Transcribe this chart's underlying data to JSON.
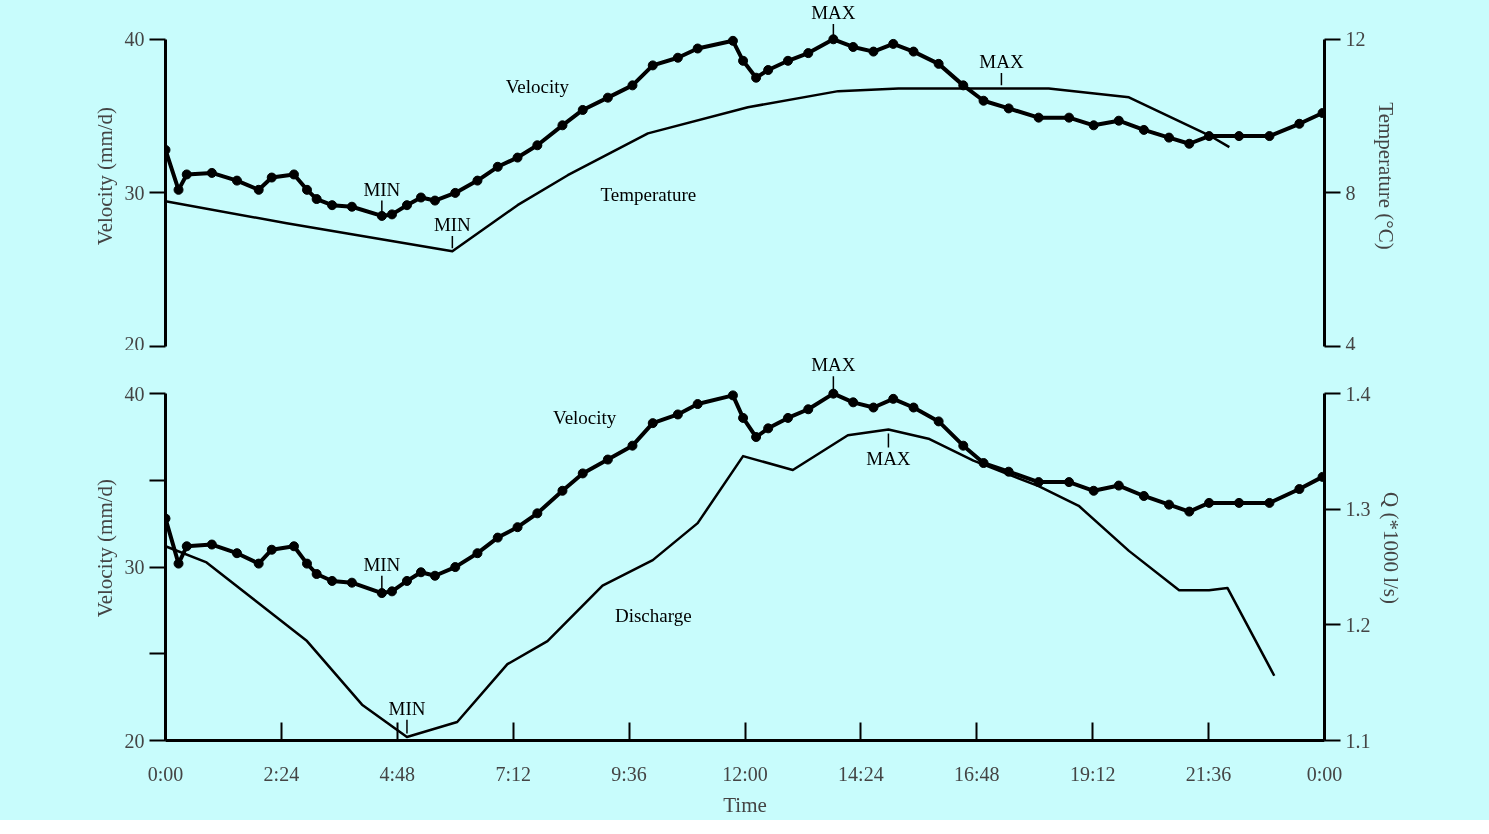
{
  "chart_data": [
    {
      "type": "line",
      "ylabel": "Velocity (mm/d)",
      "y2label": "Temperature (°C)",
      "xlim": [
        0,
        24
      ],
      "ylim": [
        20,
        40
      ],
      "yticks": [
        20,
        30,
        40
      ],
      "y2lim": [
        4,
        12
      ],
      "y2ticks": [
        4,
        8,
        12
      ],
      "tick_labels": "y",
      "grid": false,
      "legend": false,
      "x": [
        0,
        0.27,
        0.44,
        0.96,
        1.48,
        1.93,
        2.2,
        2.66,
        2.93,
        3.13,
        3.45,
        3.86,
        4.48,
        4.69,
        5.0,
        5.29,
        5.58,
        6.0,
        6.46,
        6.88,
        7.29,
        7.7,
        8.22,
        8.64,
        9.16,
        9.67,
        10.09,
        10.61,
        11.02,
        11.75,
        11.96,
        12.23,
        12.48,
        12.89,
        13.31,
        13.83,
        14.24,
        14.66,
        15.07,
        15.49,
        16.01,
        16.52,
        16.94,
        17.46,
        18.08,
        18.71,
        19.22,
        19.74,
        20.26,
        20.78,
        21.2,
        21.61,
        22.23,
        22.86,
        23.48,
        23.96
      ],
      "series": [
        {
          "name": "Velocity",
          "color": "#000000",
          "marker": "circle",
          "values": [
            32.8,
            30.2,
            31.2,
            31.3,
            30.8,
            30.2,
            31.0,
            31.2,
            30.2,
            29.6,
            29.2,
            29.1,
            28.5,
            28.6,
            29.2,
            29.7,
            29.5,
            30.0,
            30.8,
            31.7,
            32.3,
            33.1,
            34.4,
            35.4,
            36.2,
            37.0,
            38.3,
            38.8,
            39.4,
            39.9,
            38.6,
            37.5,
            38.0,
            38.6,
            39.1,
            40.0,
            39.5,
            39.2,
            39.7,
            39.2,
            38.4,
            37.0,
            36.0,
            35.5,
            34.9,
            34.9,
            34.4,
            34.7,
            34.1,
            33.6,
            33.2,
            33.7,
            33.7,
            33.7,
            34.5,
            35.2
          ]
        },
        {
          "name": "Temperature",
          "color": "#000000",
          "marker": "none",
          "axis": "y2",
          "x": [
            0,
            2.51,
            5.94,
            7.29,
            8.33,
            9.99,
            12.06,
            13.93,
            15.18,
            16.53,
            18.29,
            19.95,
            21.61,
            22.03
          ],
          "values": [
            7.78,
            7.21,
            6.48,
            7.68,
            8.46,
            9.55,
            10.23,
            10.65,
            10.72,
            10.72,
            10.72,
            10.49,
            9.5,
            9.19
          ]
        }
      ],
      "annotations": [
        {
          "text": "MIN",
          "x": 4.48,
          "y": 28.5
        },
        {
          "text": "MIN",
          "x": 5.94,
          "y": 26.2
        },
        {
          "text": "MAX",
          "x": 13.83,
          "y": 40.0
        },
        {
          "text": "MAX",
          "x": 17.31,
          "y": 36.8
        }
      ]
    },
    {
      "type": "line",
      "xlabel": "Time",
      "ylabel": "Velocity (mm/d)",
      "y2label": "Q (*1000 l/s)",
      "xlim": [
        0,
        24
      ],
      "ylim": [
        20,
        40
      ],
      "yticks": [
        20,
        {
          "value": 25,
          "label": null
        },
        30,
        {
          "value": 35,
          "label": null
        },
        40
      ],
      "y2lim": [
        1.1,
        1.4
      ],
      "y2ticks": [
        1.1,
        1.2,
        1.3,
        1.4
      ],
      "grid": false,
      "legend": false,
      "xticks": [
        {
          "value": 0,
          "label": "0:00"
        },
        {
          "value": 2.4,
          "label": "2:24"
        },
        {
          "value": 4.8,
          "label": "4:48"
        },
        {
          "value": 7.2,
          "label": "7:12"
        },
        {
          "value": 9.6,
          "label": "9:36"
        },
        {
          "value": 12,
          "label": "12:00"
        },
        {
          "value": 14.4,
          "label": "14:24"
        },
        {
          "value": 16.8,
          "label": "16:48"
        },
        {
          "value": 19.2,
          "label": "19:12"
        },
        {
          "value": 21.6,
          "label": "21:36"
        },
        {
          "value": 24,
          "label": "0:00"
        }
      ],
      "x": [
        0,
        0.27,
        0.44,
        0.96,
        1.48,
        1.93,
        2.2,
        2.66,
        2.93,
        3.13,
        3.45,
        3.86,
        4.48,
        4.69,
        5.0,
        5.29,
        5.58,
        6.0,
        6.46,
        6.88,
        7.29,
        7.7,
        8.22,
        8.64,
        9.16,
        9.67,
        10.09,
        10.61,
        11.02,
        11.75,
        11.96,
        12.23,
        12.48,
        12.89,
        13.31,
        13.83,
        14.24,
        14.66,
        15.07,
        15.49,
        16.01,
        16.52,
        16.94,
        17.46,
        18.08,
        18.71,
        19.22,
        19.74,
        20.26,
        20.78,
        21.2,
        21.61,
        22.23,
        22.86,
        23.48,
        23.96
      ],
      "series": [
        {
          "name": "Velocity",
          "color": "#000000",
          "marker": "circle",
          "values": [
            32.8,
            30.2,
            31.2,
            31.3,
            30.8,
            30.2,
            31.0,
            31.2,
            30.2,
            29.6,
            29.2,
            29.1,
            28.5,
            28.6,
            29.2,
            29.7,
            29.5,
            30.0,
            30.8,
            31.7,
            32.3,
            33.1,
            34.4,
            35.4,
            36.2,
            37.0,
            38.3,
            38.8,
            39.4,
            39.9,
            38.6,
            37.5,
            38.0,
            38.6,
            39.1,
            40.0,
            39.5,
            39.2,
            39.7,
            39.2,
            38.4,
            37.0,
            36.0,
            35.5,
            34.9,
            34.9,
            34.4,
            34.7,
            34.1,
            33.6,
            33.2,
            33.7,
            33.7,
            33.7,
            34.5,
            35.2
          ]
        },
        {
          "name": "Discharge",
          "color": "#000000",
          "marker": "none",
          "axis": "y2",
          "x": [
            0,
            0.85,
            1.89,
            2.93,
            4.07,
            5.0,
            6.04,
            7.08,
            7.91,
            9.05,
            10.09,
            11.02,
            11.96,
            12.99,
            14.13,
            14.97,
            15.8,
            16.73,
            18.08,
            18.91,
            19.95,
            20.99,
            21.61,
            21.99,
            22.96
          ],
          "values": [
            1.268,
            1.254,
            1.22,
            1.186,
            1.131,
            1.103,
            1.116,
            1.166,
            1.186,
            1.234,
            1.256,
            1.288,
            1.346,
            1.334,
            1.364,
            1.369,
            1.361,
            1.342,
            1.32,
            1.303,
            1.264,
            1.23,
            1.23,
            1.232,
            1.156
          ]
        }
      ],
      "annotations": [
        {
          "text": "MIN",
          "x": 4.48,
          "y": 28.5
        },
        {
          "text": "MIN",
          "x": 5.0,
          "y": 20.2
        },
        {
          "text": "MAX",
          "x": 13.83,
          "y": 40.0
        },
        {
          "text": "MAX",
          "x": 14.97,
          "y": 37.9
        }
      ]
    }
  ]
}
